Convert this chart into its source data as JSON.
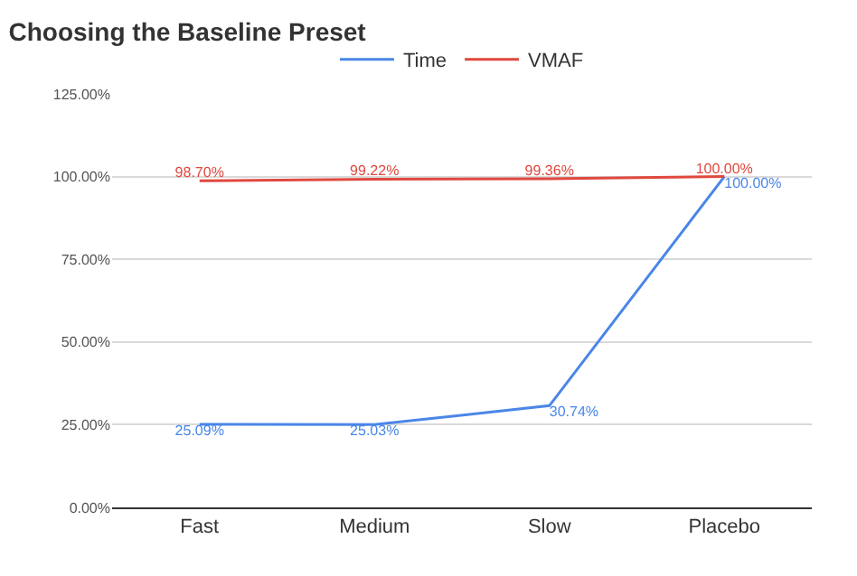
{
  "chart_data": {
    "type": "line",
    "title": "Choosing the Baseline Preset",
    "categories": [
      "Fast",
      "Medium",
      "Slow",
      "Placebo"
    ],
    "series": [
      {
        "name": "Time",
        "color": "#4a86e8",
        "values": [
          25.09,
          25.03,
          30.74,
          100.0
        ],
        "value_labels": [
          "25.09%",
          "25.03%",
          "30.74%",
          "100.00%"
        ]
      },
      {
        "name": "VMAF",
        "color": "#e0483e",
        "values": [
          98.7,
          99.22,
          99.36,
          100.0
        ],
        "value_labels": [
          "98.70%",
          "99.22%",
          "99.36%",
          "100.00%"
        ]
      }
    ],
    "ylim": [
      0,
      125
    ],
    "yticks": [
      {
        "value": 0,
        "label": "0.00%"
      },
      {
        "value": 25,
        "label": "25.00%"
      },
      {
        "value": 50,
        "label": "50.00%"
      },
      {
        "value": 75,
        "label": "75.00%"
      },
      {
        "value": 100,
        "label": "100.00%"
      },
      {
        "value": 125,
        "label": "125.00%"
      }
    ],
    "grid": "y",
    "legend": "top",
    "marker": "none",
    "line_style": "solid"
  }
}
